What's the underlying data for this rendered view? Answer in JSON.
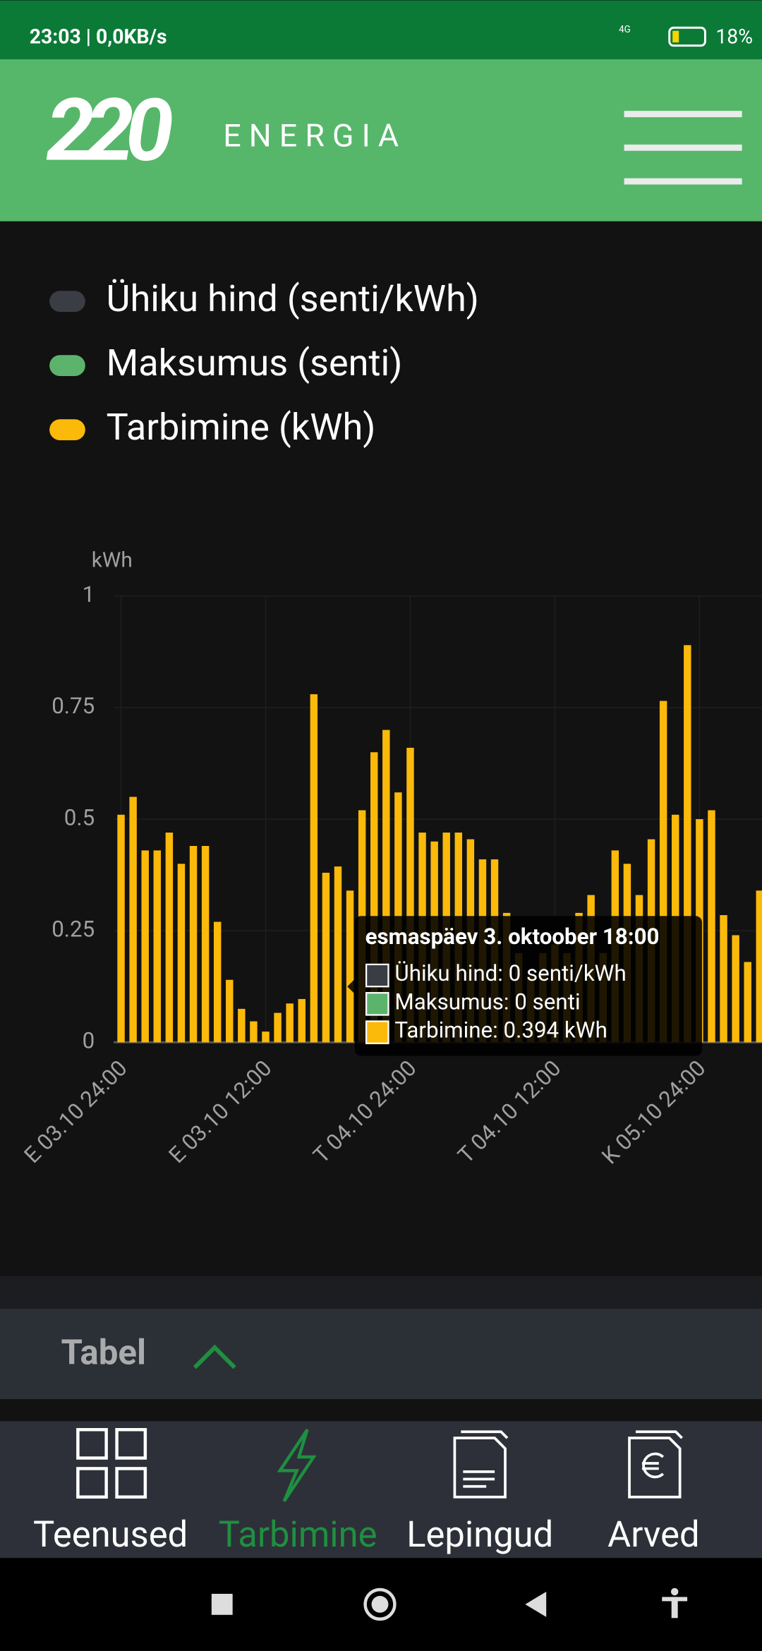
{
  "status_bar": {
    "left": "23:03 | 0,0KB/s",
    "network": "4G",
    "battery": "18%"
  },
  "header": {
    "logo": "220",
    "brand": "E N E R G I A"
  },
  "chart_data": {
    "type": "bar",
    "y_label": "kWh",
    "ylim": [
      0,
      1
    ],
    "yticks": [
      0,
      0.25,
      0.5,
      0.75,
      1
    ],
    "x_labels": [
      "E 03.10 24:00",
      "E 03.10 12:00",
      "T 04.10 24:00",
      "T 04.10 12:00",
      "K 05.10 24:00"
    ],
    "series": [
      {
        "name": "Ühiku hind (senti/kWh)",
        "color": "#3a3d44"
      },
      {
        "name": "Maksumus (senti)",
        "color": "#5cb46c"
      },
      {
        "name": "Tarbimine (kWh)",
        "color": "#fbb90a",
        "values": [
          0.51,
          0.55,
          0.43,
          0.43,
          0.47,
          0.4,
          0.44,
          0.44,
          0.27,
          0.14,
          0.075,
          0.047,
          0.024,
          0.066,
          0.087,
          0.097,
          0.78,
          0.38,
          0.394,
          0.34,
          0.52,
          0.65,
          0.7,
          0.56,
          0.66,
          0.47,
          0.45,
          0.47,
          0.47,
          0.455,
          0.41,
          0.41,
          0.29,
          0.2,
          0.15,
          0.2,
          0.22,
          0.2,
          0.29,
          0.33,
          0.2,
          0.43,
          0.4,
          0.33,
          0.455,
          0.765,
          0.51,
          0.89,
          0.5,
          0.52,
          0.285,
          0.24,
          0.18,
          0.34
        ]
      }
    ],
    "tooltip": {
      "title": "esmaspäev 3. oktoober 18:00",
      "rows": [
        "Ühiku hind: 0 senti/kWh",
        "Maksumus: 0 senti",
        "Tarbimine: 0.394 kWh"
      ]
    }
  },
  "table": {
    "title": "Tabel"
  },
  "nav": {
    "items": [
      "Teenused",
      "Tarbimine",
      "Lepingud",
      "Arved"
    ],
    "active": 1
  }
}
